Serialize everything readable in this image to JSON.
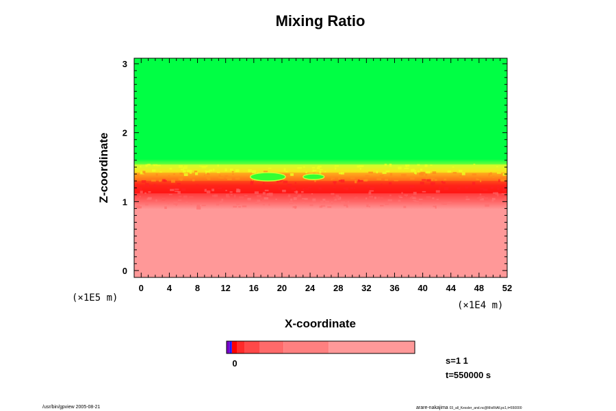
{
  "chart_data": {
    "type": "heatmap",
    "title": "Mixing Ratio",
    "xlabel": "X-coordinate",
    "ylabel": "Z-coordinate",
    "xlim": [
      -1,
      52
    ],
    "ylim": [
      -0.1,
      3.08
    ],
    "x_ticks": [
      0,
      4,
      8,
      12,
      16,
      20,
      24,
      28,
      32,
      36,
      40,
      44,
      48,
      52
    ],
    "x_tick_labels": [
      "0",
      "4",
      "8",
      "12",
      "16",
      "20",
      "24",
      "28",
      "32",
      "36",
      "40",
      "44",
      "48",
      "52"
    ],
    "y_ticks": [
      0,
      1,
      2,
      3
    ],
    "y_tick_labels": [
      "0",
      "1",
      "2",
      "3"
    ],
    "x_scale_label": "(×1E4 m)",
    "y_scale_label": "(×1E5 m)",
    "regions": [
      {
        "name": "lower pink layer",
        "z_from": -0.1,
        "z_to": 1.12,
        "color": "#ff9999"
      },
      {
        "name": "red transition layer",
        "z_from": 1.12,
        "z_to": 1.3,
        "color": "#ff1a1a"
      },
      {
        "name": "orange transition layer",
        "z_from": 1.3,
        "z_to": 1.42,
        "color": "#ff7a1a"
      },
      {
        "name": "yellow transition layer",
        "z_from": 1.42,
        "z_to": 1.54,
        "color": "#e6f51a"
      },
      {
        "name": "upper green layer",
        "z_from": 1.54,
        "z_to": 3.08,
        "color": "#00ff44"
      }
    ],
    "intrusions": [
      {
        "x_from": 15.5,
        "x_to": 20.5,
        "z_from": 1.3,
        "z_to": 1.42,
        "color": "#33ff33"
      },
      {
        "x_from": 23,
        "x_to": 26,
        "z_from": 1.32,
        "z_to": 1.4,
        "color": "#33ff33"
      }
    ],
    "colorbar": {
      "zero_label": "0",
      "segments": [
        {
          "color": "#7a00c8",
          "weight": 3
        },
        {
          "color": "#1a1aff",
          "weight": 2
        },
        {
          "color": "#ff0000",
          "weight": 5
        },
        {
          "color": "#ff2a2a",
          "weight": 7
        },
        {
          "color": "#ff4848",
          "weight": 14
        },
        {
          "color": "#ff6a6a",
          "weight": 22
        },
        {
          "color": "#ff8080",
          "weight": 42
        },
        {
          "color": "#ff9999",
          "weight": 80
        }
      ]
    },
    "annotations": {
      "s": "s=1 1",
      "t": "t=550000 s"
    },
    "footer_left": "/usr/bin/gpview 2005-08-21",
    "footer_right": "arare-nakajima",
    "footer_right_small": "03_all_Kessler_and.nc@MixRtAll,pc1,t=550000"
  },
  "colors": {
    "pink": "#ff9999",
    "red": "#ff1a1a",
    "orange": "#ff7a1a",
    "yellow": "#e6f51a",
    "green": "#00ff44"
  }
}
